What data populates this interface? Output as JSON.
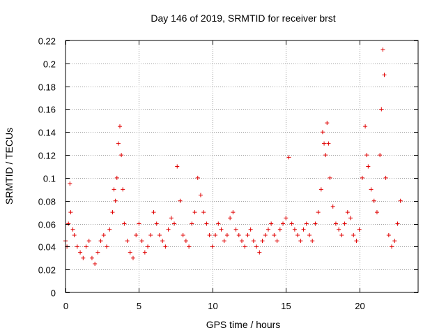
{
  "chart_data": {
    "type": "scatter",
    "title": "Day 146 of 2019, SRMTID for receiver brst",
    "xlabel": "GPS time / hours",
    "ylabel": "SRMTID / TECUs",
    "xlim": [
      0,
      24
    ],
    "ylim": [
      0,
      0.22
    ],
    "xticks": [
      0,
      5,
      10,
      15,
      20
    ],
    "xtick_labels": [
      "0",
      "5",
      "10",
      "15",
      "20"
    ],
    "yticks": [
      0,
      0.02,
      0.04,
      0.06,
      0.08,
      0.1,
      0.12,
      0.14,
      0.16,
      0.18,
      0.2,
      0.22
    ],
    "ytick_labels": [
      "0",
      "0.02",
      "0.04",
      "0.06",
      "0.08",
      "0.1",
      "0.12",
      "0.14",
      "0.16",
      "0.18",
      "0.2",
      "0.22"
    ],
    "grid": true,
    "marker": "+",
    "color": "#e00000",
    "series": [
      {
        "name": "SRMTID",
        "x": [
          0.0,
          0.1,
          0.2,
          0.3,
          0.35,
          0.5,
          0.6,
          0.8,
          1.0,
          1.2,
          1.4,
          1.6,
          1.8,
          2.0,
          2.2,
          2.4,
          2.6,
          2.8,
          3.0,
          3.2,
          3.3,
          3.4,
          3.5,
          3.6,
          3.7,
          3.8,
          3.9,
          4.0,
          4.2,
          4.4,
          4.6,
          4.8,
          5.0,
          5.2,
          5.4,
          5.6,
          5.8,
          6.0,
          6.2,
          6.4,
          6.6,
          6.8,
          7.0,
          7.2,
          7.4,
          7.6,
          7.8,
          8.0,
          8.2,
          8.4,
          8.6,
          8.8,
          9.0,
          9.2,
          9.4,
          9.6,
          9.8,
          10.0,
          10.2,
          10.4,
          10.6,
          10.8,
          11.0,
          11.2,
          11.4,
          11.6,
          11.8,
          12.0,
          12.2,
          12.4,
          12.6,
          12.8,
          13.0,
          13.2,
          13.4,
          13.6,
          13.8,
          14.0,
          14.2,
          14.4,
          14.6,
          14.8,
          15.0,
          15.2,
          15.4,
          15.6,
          15.8,
          16.0,
          16.2,
          16.4,
          16.6,
          16.8,
          17.0,
          17.2,
          17.4,
          17.5,
          17.6,
          17.7,
          17.8,
          17.9,
          18.0,
          18.2,
          18.4,
          18.6,
          18.8,
          19.0,
          19.2,
          19.4,
          19.6,
          19.8,
          20.0,
          20.2,
          20.4,
          20.5,
          20.6,
          20.8,
          21.0,
          21.2,
          21.4,
          21.5,
          21.6,
          21.7,
          21.8,
          22.0,
          22.2,
          22.4,
          22.6,
          22.8
        ],
        "y": [
          0.045,
          0.04,
          0.06,
          0.095,
          0.07,
          0.055,
          0.05,
          0.04,
          0.035,
          0.03,
          0.04,
          0.045,
          0.03,
          0.025,
          0.035,
          0.045,
          0.05,
          0.04,
          0.055,
          0.07,
          0.09,
          0.08,
          0.1,
          0.13,
          0.145,
          0.12,
          0.09,
          0.06,
          0.045,
          0.035,
          0.03,
          0.05,
          0.06,
          0.045,
          0.035,
          0.04,
          0.05,
          0.07,
          0.06,
          0.05,
          0.045,
          0.04,
          0.055,
          0.065,
          0.06,
          0.11,
          0.08,
          0.05,
          0.045,
          0.04,
          0.06,
          0.07,
          0.1,
          0.085,
          0.07,
          0.06,
          0.05,
          0.04,
          0.05,
          0.06,
          0.055,
          0.045,
          0.05,
          0.065,
          0.07,
          0.055,
          0.05,
          0.045,
          0.04,
          0.05,
          0.055,
          0.045,
          0.04,
          0.035,
          0.045,
          0.05,
          0.055,
          0.06,
          0.05,
          0.045,
          0.055,
          0.06,
          0.065,
          0.118,
          0.06,
          0.055,
          0.05,
          0.045,
          0.055,
          0.06,
          0.05,
          0.045,
          0.06,
          0.07,
          0.09,
          0.14,
          0.13,
          0.12,
          0.148,
          0.13,
          0.1,
          0.075,
          0.06,
          0.055,
          0.05,
          0.06,
          0.07,
          0.065,
          0.05,
          0.045,
          0.055,
          0.1,
          0.145,
          0.12,
          0.11,
          0.09,
          0.08,
          0.07,
          0.12,
          0.16,
          0.212,
          0.19,
          0.1,
          0.05,
          0.04,
          0.045,
          0.06,
          0.08
        ]
      }
    ]
  }
}
